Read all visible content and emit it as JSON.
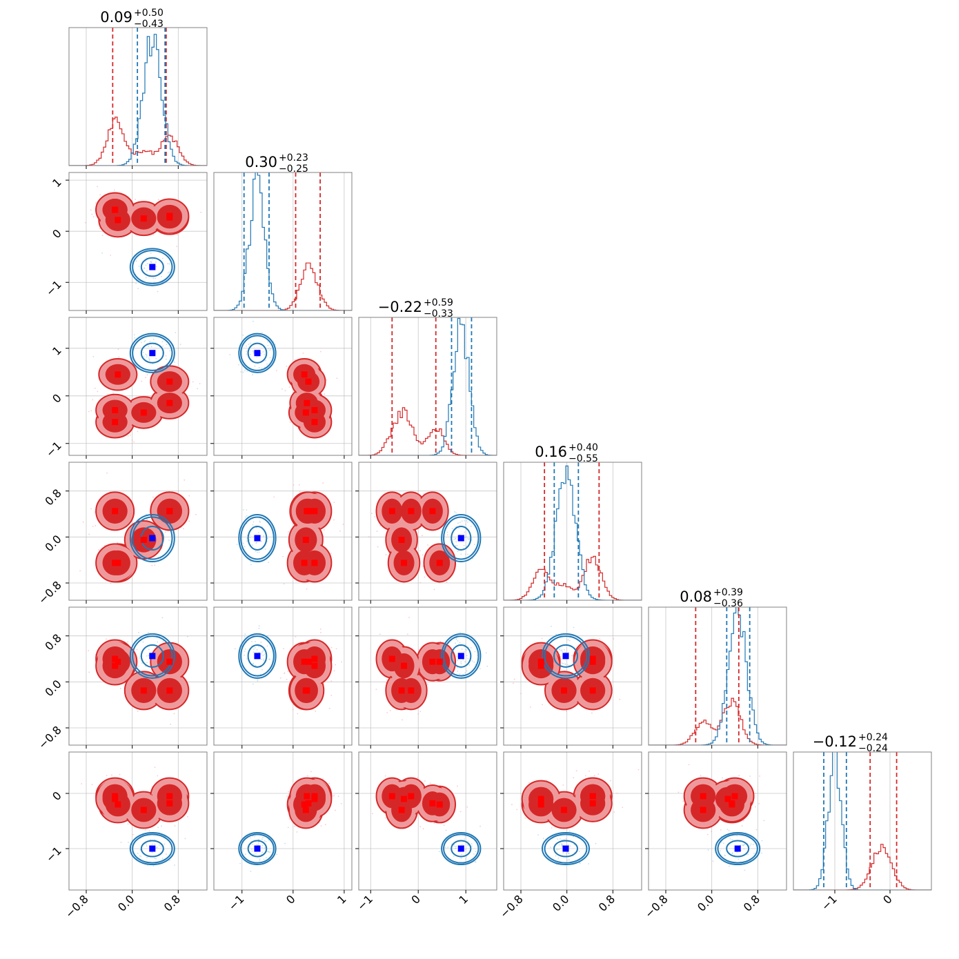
{
  "chart_data": {
    "type": "corner",
    "n_params": 6,
    "colors": {
      "red": "#d62728",
      "blue": "#1f77b4",
      "red_marker": "#ff0000",
      "blue_marker": "#0000ff"
    },
    "grid": true,
    "titles": [
      {
        "value": "0.09",
        "plus": "+0.50",
        "minus": "−0.43"
      },
      {
        "value": "0.30",
        "plus": "+0.23",
        "minus": "−0.25"
      },
      {
        "value": "−0.22",
        "plus": "+0.59",
        "minus": "−0.33"
      },
      {
        "value": "0.16",
        "plus": "+0.40",
        "minus": "−0.55"
      },
      {
        "value": "0.08",
        "plus": "+0.39",
        "minus": "−0.36"
      },
      {
        "value": "−0.12",
        "plus": "+0.24",
        "minus": "−0.24"
      }
    ],
    "ranges": [
      [
        -1.1,
        1.3
      ],
      [
        -1.55,
        1.15
      ],
      [
        -1.25,
        1.65
      ],
      [
        -1.1,
        1.3
      ],
      [
        -1.1,
        1.3
      ],
      [
        -1.75,
        0.75
      ]
    ],
    "ticks": [
      [
        {
          "v": -0.8,
          "label": "−0.8"
        },
        {
          "v": 0.0,
          "label": "0.0"
        },
        {
          "v": 0.8,
          "label": "0.8"
        }
      ],
      [
        {
          "v": -1,
          "label": "−1"
        },
        {
          "v": 0,
          "label": "0"
        },
        {
          "v": 1,
          "label": "1"
        }
      ],
      [
        {
          "v": -1,
          "label": "−1"
        },
        {
          "v": 0,
          "label": "0"
        },
        {
          "v": 1,
          "label": "1"
        }
      ],
      [
        {
          "v": -0.8,
          "label": "−0.8"
        },
        {
          "v": 0.0,
          "label": "0.0"
        },
        {
          "v": 0.8,
          "label": "0.8"
        }
      ],
      [
        {
          "v": -0.8,
          "label": "−0.8"
        },
        {
          "v": 0.0,
          "label": "0.0"
        },
        {
          "v": 0.8,
          "label": "0.8"
        }
      ],
      [
        {
          "v": -1,
          "label": "−1"
        },
        {
          "v": 0,
          "label": "0"
        }
      ]
    ],
    "red_modes": [
      [
        -0.3,
        0.42,
        -0.55,
        0.45,
        0.4,
        -0.05
      ],
      [
        -0.25,
        0.22,
        0.45,
        -0.45,
        0.35,
        -0.2
      ],
      [
        0.2,
        0.25,
        -0.35,
        -0.05,
        -0.15,
        -0.3
      ],
      [
        0.65,
        0.27,
        -0.15,
        0.45,
        -0.15,
        -0.05
      ],
      [
        0.65,
        0.3,
        0.3,
        0.45,
        0.35,
        -0.18
      ],
      [
        -0.3,
        0.42,
        -0.3,
        -0.45,
        0.28,
        -0.1
      ]
    ],
    "blue_mean": [
      0.35,
      -0.7,
      0.9,
      -0.02,
      0.45,
      -1.0
    ],
    "blue_std": [
      0.16,
      0.15,
      0.17,
      0.17,
      0.16,
      0.12
    ],
    "red_quantiles": [
      [
        -0.34,
        0.59
      ],
      [
        0.05,
        0.53
      ],
      [
        -0.55,
        0.37
      ],
      [
        -0.39,
        0.56
      ],
      [
        -0.28,
        0.47
      ],
      [
        -0.36,
        0.12
      ]
    ],
    "blue_quantiles": [
      [
        0.09,
        0.57
      ],
      [
        -0.96,
        -0.47
      ],
      [
        0.7,
        1.12
      ],
      [
        -0.22,
        0.2
      ],
      [
        0.26,
        0.66
      ],
      [
        -1.2,
        -0.79
      ]
    ],
    "red_hist_peak": 0.34,
    "blue_hist_peak": 1.0
  }
}
